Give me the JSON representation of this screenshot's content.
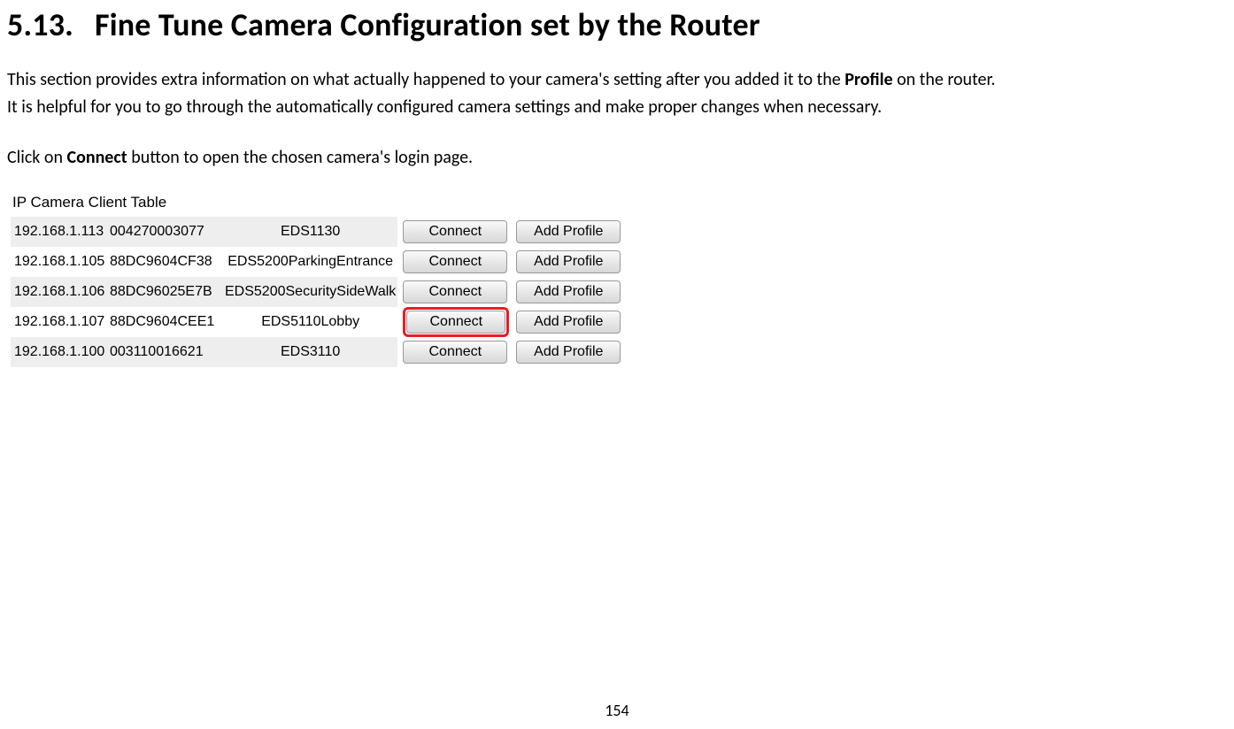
{
  "heading": {
    "number": "5.13.",
    "title": "Fine Tune Camera Configuration set by the Router"
  },
  "paragraphs": {
    "line1_a": "This section provides extra information on what actually happened to your camera's setting after you added it to the ",
    "line1_bold": "Profile",
    "line1_b": " on the router.",
    "line2": "It is helpful for you to go through the automatically configured camera settings and make proper changes when necessary.",
    "line3_a": "Click on ",
    "line3_bold": "Connect",
    "line3_b": " button to open the chosen camera's login page."
  },
  "table": {
    "title": "IP Camera Client Table",
    "connect_label": "Connect",
    "addprofile_label": "Add Profile",
    "highlight_row_index": 3,
    "rows": [
      {
        "ip": "192.168.1.113",
        "mac": "004270003077",
        "name": "EDS1130",
        "alt": true
      },
      {
        "ip": "192.168.1.105",
        "mac": "88DC9604CF38",
        "name": "EDS5200ParkingEntrance",
        "alt": false
      },
      {
        "ip": "192.168.1.106",
        "mac": "88DC96025E7B",
        "name": "EDS5200SecuritySideWalk",
        "alt": true
      },
      {
        "ip": "192.168.1.107",
        "mac": "88DC9604CEE1",
        "name": "EDS5110Lobby",
        "alt": false
      },
      {
        "ip": "192.168.1.100",
        "mac": "003110016621",
        "name": "EDS3110",
        "alt": true
      }
    ]
  },
  "page_number": "154",
  "colors": {
    "row_alt_bg": "#eeeeee",
    "highlight_border": "#ed1c24",
    "btn_border": "#999999",
    "text": "#000000",
    "bg": "#ffffff"
  }
}
